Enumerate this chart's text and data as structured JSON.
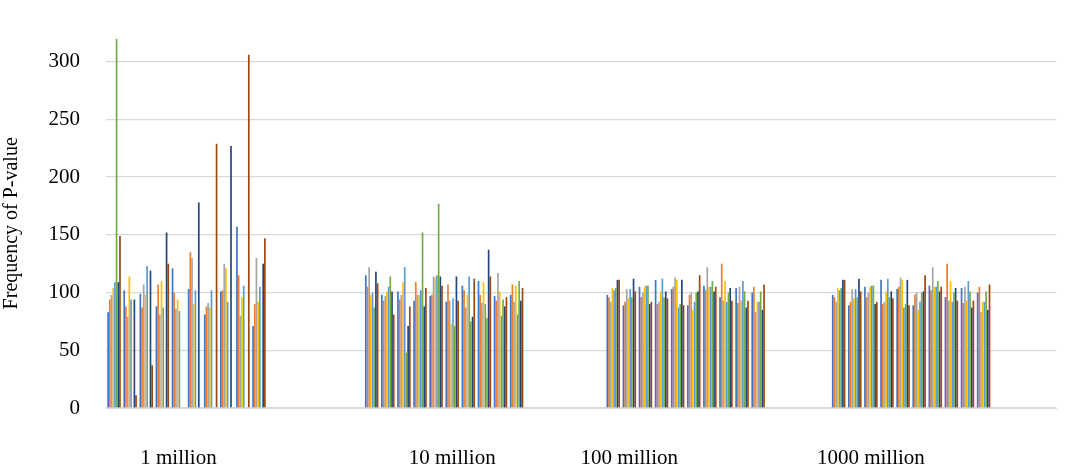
{
  "chart_data": {
    "type": "bar",
    "ylabel": "Frequency of P-value",
    "categories": [
      null,
      null,
      null,
      null,
      "1 million",
      null,
      null,
      null,
      null,
      null,
      null,
      null,
      null,
      null,
      null,
      null,
      null,
      null,
      null,
      null,
      null,
      "10 million",
      null,
      null,
      null,
      null,
      null,
      null,
      null,
      null,
      null,
      null,
      "100 million",
      null,
      null,
      null,
      null,
      null,
      null,
      null,
      null,
      null,
      null,
      null,
      null,
      null,
      null,
      "1000 million",
      null,
      null,
      null,
      null,
      null,
      null,
      null,
      null,
      null,
      null,
      null
    ],
    "series": [
      {
        "color": "#4472c4",
        "values": [
          83,
          102,
          99,
          88,
          121,
          103,
          81,
          101,
          157,
          71,
          null,
          null,
          null,
          null,
          null,
          null,
          115,
          98,
          101,
          93,
          97,
          92,
          106,
          110,
          97,
          98,
          null,
          null,
          null,
          null,
          null,
          98,
          89,
          105,
          111,
          103,
          89,
          106,
          96,
          104,
          100,
          null,
          null,
          null,
          null,
          98,
          89,
          105,
          111,
          103,
          89,
          106,
          96,
          104,
          100,
          null,
          null,
          null,
          null
        ]
      },
      {
        "color": "#ed7d31",
        "values": [
          94,
          88,
          87,
          107,
          100,
          135,
          88,
          102,
          115,
          90,
          null,
          null,
          null,
          null,
          null,
          null,
          105,
          93,
          94,
          109,
          98,
          107,
          102,
          98,
          93,
          107,
          null,
          null,
          null,
          null,
          null,
          96,
          92,
          96,
          90,
          105,
          98,
          102,
          125,
          91,
          105,
          null,
          null,
          null,
          null,
          96,
          92,
          96,
          90,
          105,
          98,
          102,
          125,
          91,
          105,
          null,
          null,
          null,
          null
        ]
      },
      {
        "color": "#a5a5a5",
        "values": [
          98,
          79,
          107,
          81,
          86,
          130,
          91,
          125,
          80,
          130,
          null,
          null,
          null,
          null,
          null,
          null,
          122,
          97,
          98,
          98,
          114,
          93,
          87,
          91,
          117,
          92,
          null,
          null,
          null,
          null,
          null,
          92,
          103,
          100,
          92,
          113,
          100,
          122,
          93,
          105,
          83,
          null,
          null,
          null,
          null,
          92,
          103,
          100,
          92,
          113,
          100,
          122,
          93,
          105,
          83,
          null,
          null,
          null,
          null
        ]
      },
      {
        "color": "#ffc000",
        "values": [
          104,
          114,
          98,
          110,
          94,
          90,
          87,
          121,
          96,
          92,
          null,
          null,
          null,
          null,
          null,
          null,
          98,
          101,
          109,
          98,
          113,
          73,
          98,
          109,
          101,
          106,
          null,
          null,
          null,
          null,
          null,
          104,
          95,
          105,
          101,
          111,
          85,
          105,
          110,
          93,
          92,
          null,
          null,
          null,
          null,
          104,
          95,
          105,
          101,
          111,
          85,
          105,
          110,
          93,
          92,
          null,
          null,
          null,
          null
        ]
      },
      {
        "color": "#5b9bd5",
        "values": [
          109,
          94,
          123,
          87,
          84,
          102,
          102,
          92,
          106,
          105,
          null,
          null,
          null,
          null,
          null,
          null,
          100,
          105,
          122,
          102,
          115,
          95,
          114,
          90,
          80,
          81,
          null,
          null,
          null,
          null,
          null,
          102,
          103,
          106,
          112,
          87,
          92,
          105,
          92,
          110,
          92,
          null,
          null,
          null,
          null,
          102,
          103,
          106,
          112,
          87,
          92,
          105,
          92,
          110,
          92,
          null,
          null,
          null,
          null
        ]
      },
      {
        "color": "#70ad47",
        "values": [
          320,
          null,
          null,
          null,
          null,
          null,
          null,
          null,
          null,
          null,
          null,
          null,
          null,
          null,
          null,
          null,
          87,
          114,
          48,
          152,
          177,
          71,
          75,
          78,
          94,
          110,
          null,
          null,
          null,
          null,
          null,
          104,
          96,
          106,
          96,
          90,
          100,
          110,
          100,
          101,
          101,
          null,
          null,
          null,
          null,
          104,
          96,
          106,
          96,
          90,
          100,
          110,
          100,
          101,
          101,
          null,
          null,
          null,
          null
        ]
      },
      {
        "color": "#264478",
        "values": [
          109,
          94,
          119,
          152,
          null,
          178,
          null,
          227,
          null,
          125,
          null,
          null,
          null,
          null,
          null,
          null,
          118,
          101,
          71,
          88,
          114,
          114,
          79,
          137,
          88,
          93,
          null,
          null,
          null,
          null,
          null,
          111,
          112,
          90,
          101,
          111,
          101,
          101,
          104,
          87,
          85,
          null,
          null,
          null,
          null,
          111,
          112,
          90,
          101,
          111,
          101,
          101,
          104,
          87,
          85,
          null,
          null,
          null,
          null
        ]
      },
      {
        "color": "#9e480e",
        "values": [
          149,
          11,
          37,
          125,
          null,
          null,
          229,
          null,
          306,
          147,
          null,
          null,
          null,
          null,
          null,
          null,
          108,
          81,
          88,
          104,
          106,
          93,
          112,
          114,
          96,
          104,
          null,
          null,
          null,
          null,
          null,
          111,
          101,
          92,
          95,
          89,
          115,
          105,
          93,
          93,
          107,
          null,
          null,
          null,
          null,
          111,
          101,
          92,
          95,
          89,
          115,
          105,
          93,
          93,
          107,
          null,
          null,
          null,
          null
        ]
      }
    ],
    "ylim": [
      0,
      320
    ],
    "yticks": [
      0,
      50,
      100,
      150,
      200,
      250,
      300
    ],
    "grid": "y",
    "legend": false
  }
}
